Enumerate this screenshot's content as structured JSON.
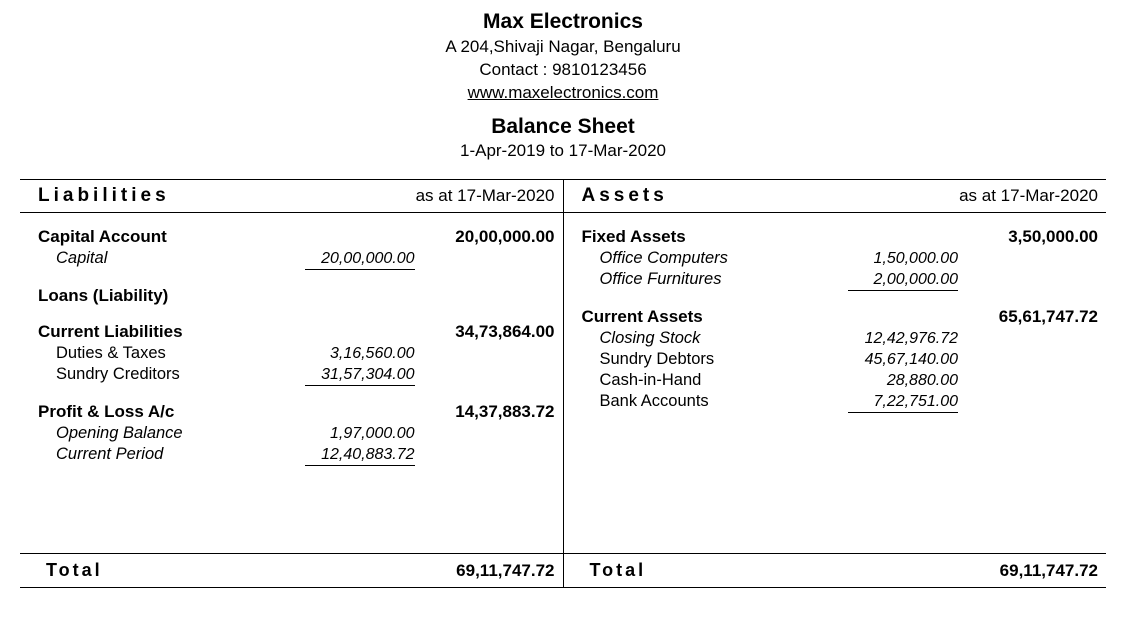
{
  "header": {
    "company_name": "Max Electronics",
    "address": "A 204,Shivaji Nagar, Bengaluru",
    "contact_label": "Contact : 9810123456",
    "website": "www.maxelectronics.com",
    "report_title": "Balance Sheet",
    "period": "1-Apr-2019 to 17-Mar-2020"
  },
  "columns": {
    "liabilities_title": "Liabilities",
    "assets_title": "Assets",
    "as_at": "as at 17-Mar-2020"
  },
  "liabilities": {
    "capital_account": {
      "label": "Capital Account",
      "total": "20,00,000.00"
    },
    "capital_sub": {
      "label": "Capital",
      "value": "20,00,000.00"
    },
    "loans": {
      "label": "Loans (Liability)"
    },
    "current_liab": {
      "label": "Current Liabilities",
      "total": "34,73,864.00"
    },
    "duties": {
      "label": "Duties & Taxes",
      "value": "3,16,560.00"
    },
    "creditors": {
      "label": "Sundry Creditors",
      "value": "31,57,304.00"
    },
    "pl": {
      "label": "Profit & Loss A/c",
      "total": "14,37,883.72"
    },
    "opening": {
      "label": "Opening Balance",
      "value": "1,97,000.00"
    },
    "current_period": {
      "label": "Current Period",
      "value": "12,40,883.72"
    }
  },
  "assets": {
    "fixed": {
      "label": "Fixed Assets",
      "total": "3,50,000.00"
    },
    "computers": {
      "label": "Office Computers",
      "value": "1,50,000.00"
    },
    "furnitures": {
      "label": "Office Furnitures",
      "value": "2,00,000.00"
    },
    "current": {
      "label": "Current Assets",
      "total": "65,61,747.72"
    },
    "closing": {
      "label": "Closing Stock",
      "value": "12,42,976.72"
    },
    "debtors": {
      "label": "Sundry Debtors",
      "value": "45,67,140.00"
    },
    "cash": {
      "label": "Cash-in-Hand",
      "value": "28,880.00"
    },
    "bank": {
      "label": "Bank Accounts",
      "value": "7,22,751.00"
    }
  },
  "totals": {
    "label": "Total",
    "liabilities": "69,11,747.72",
    "assets": "69,11,747.72"
  },
  "style": {
    "text_color": "#000000",
    "background_color": "#ffffff",
    "border_color": "#000000",
    "base_fontsize": 17,
    "bold_fontsize": 19
  }
}
